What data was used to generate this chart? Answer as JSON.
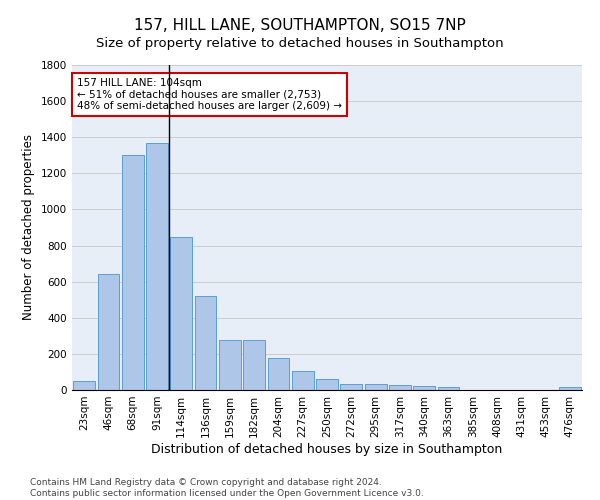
{
  "title1": "157, HILL LANE, SOUTHAMPTON, SO15 7NP",
  "title2": "Size of property relative to detached houses in Southampton",
  "xlabel": "Distribution of detached houses by size in Southampton",
  "ylabel": "Number of detached properties",
  "categories": [
    "23sqm",
    "46sqm",
    "68sqm",
    "91sqm",
    "114sqm",
    "136sqm",
    "159sqm",
    "182sqm",
    "204sqm",
    "227sqm",
    "250sqm",
    "272sqm",
    "295sqm",
    "317sqm",
    "340sqm",
    "363sqm",
    "385sqm",
    "408sqm",
    "431sqm",
    "453sqm",
    "476sqm"
  ],
  "values": [
    50,
    640,
    1300,
    1370,
    845,
    520,
    275,
    275,
    175,
    105,
    60,
    35,
    35,
    30,
    22,
    15,
    0,
    0,
    0,
    0,
    15
  ],
  "bar_color": "#aec6e8",
  "bar_edge_color": "#5a9fd4",
  "annotation_box_text": "157 HILL LANE: 104sqm\n← 51% of detached houses are smaller (2,753)\n48% of semi-detached houses are larger (2,609) →",
  "annotation_box_color": "#ffffff",
  "annotation_box_edge_color": "#cc0000",
  "vline_color": "#000000",
  "ylim": [
    0,
    1800
  ],
  "yticks": [
    0,
    200,
    400,
    600,
    800,
    1000,
    1200,
    1400,
    1600,
    1800
  ],
  "grid_color": "#cccccc",
  "bg_color": "#e8eef7",
  "footer1": "Contains HM Land Registry data © Crown copyright and database right 2024.",
  "footer2": "Contains public sector information licensed under the Open Government Licence v3.0.",
  "title1_fontsize": 11,
  "title2_fontsize": 9.5,
  "xlabel_fontsize": 9,
  "ylabel_fontsize": 8.5,
  "tick_fontsize": 7.5,
  "footer_fontsize": 6.5,
  "annotation_fontsize": 7.5
}
